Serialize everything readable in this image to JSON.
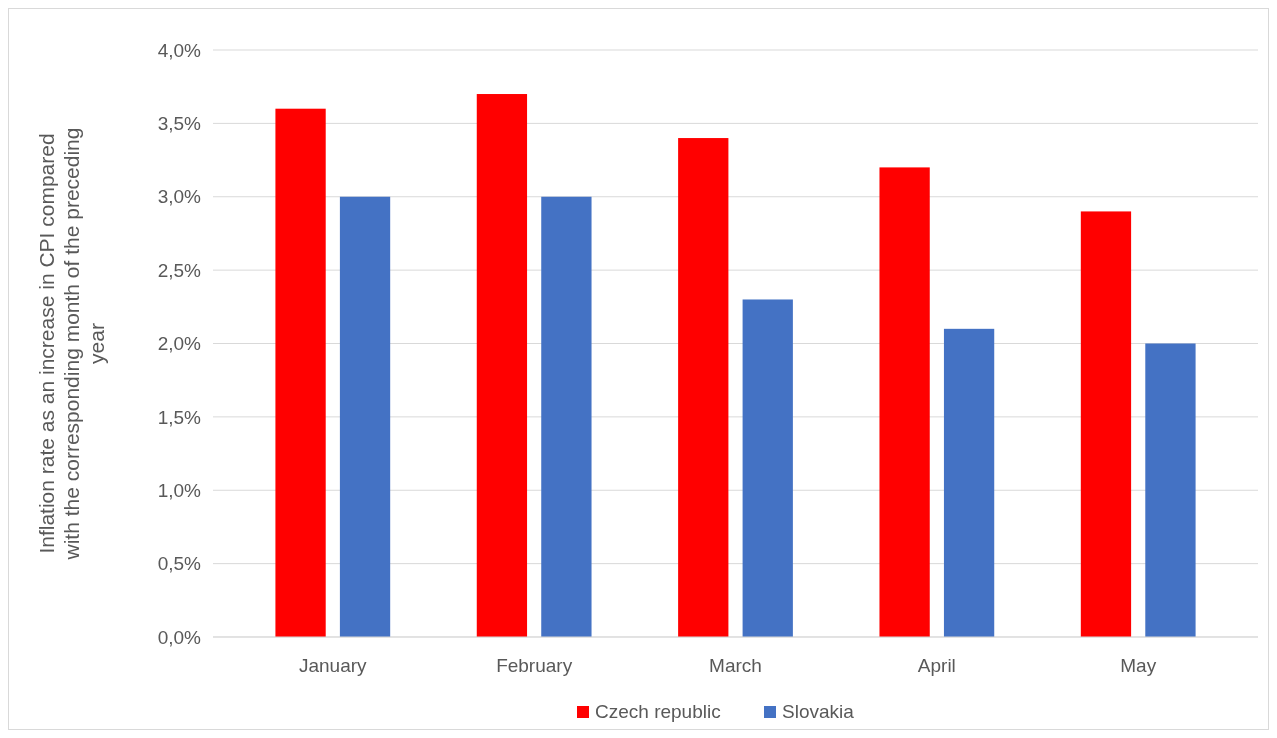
{
  "chart_data": {
    "type": "bar",
    "ylabel": "Inflation rate as an increase in CPI compared with the corresponding month of the preceding year",
    "categories": [
      "January",
      "February",
      "March",
      "April",
      "May"
    ],
    "series": [
      {
        "name": "Czech republic",
        "color": "#ff0000",
        "values": [
          3.6,
          3.7,
          3.4,
          3.2,
          2.9
        ]
      },
      {
        "name": "Slovakia",
        "color": "#4472c4",
        "values": [
          3.0,
          3.0,
          2.3,
          2.1,
          2.0
        ]
      }
    ],
    "ylim": [
      0,
      4
    ],
    "yticks": [
      {
        "value": 0,
        "label": "0,0%"
      },
      {
        "value": 0.5,
        "label": "0,5%"
      },
      {
        "value": 1,
        "label": "1,0%"
      },
      {
        "value": 1.5,
        "label": "1,5%"
      },
      {
        "value": 2,
        "label": "2,0%"
      },
      {
        "value": 2.5,
        "label": "2,5%"
      },
      {
        "value": 3,
        "label": "3,0%"
      },
      {
        "value": 3.5,
        "label": "3,5%"
      },
      {
        "value": 4,
        "label": "4,0%"
      }
    ],
    "grid": "y",
    "legend": "bottom"
  }
}
